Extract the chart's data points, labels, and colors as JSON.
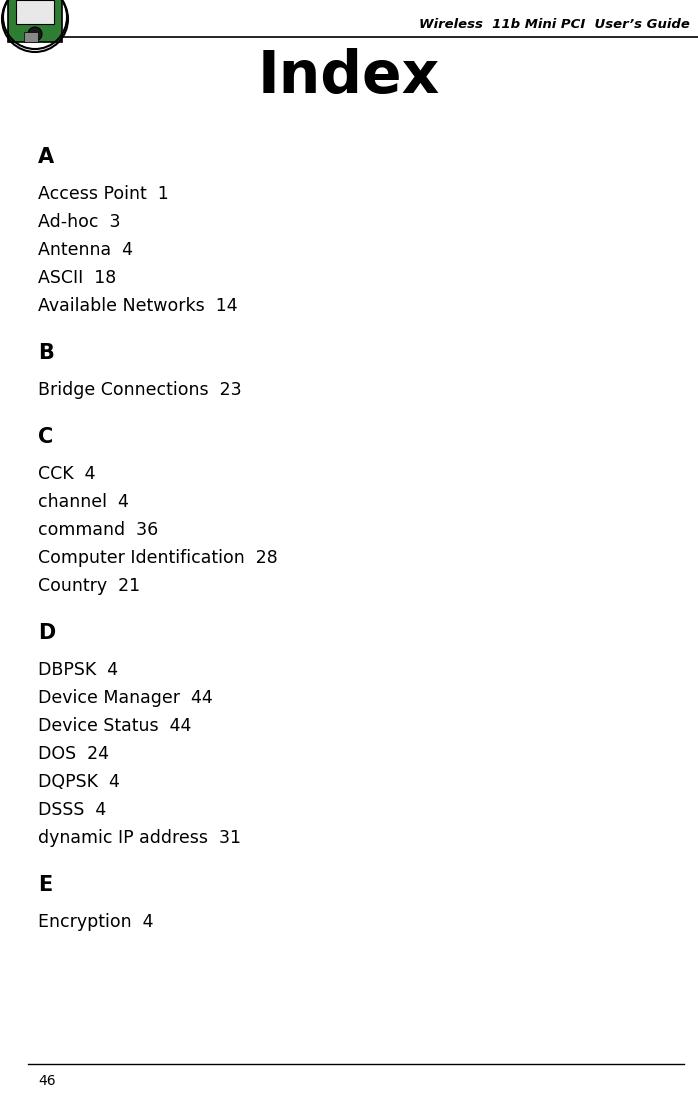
{
  "page_title": "Index",
  "header_text": "Wireless  11b Mini PCI  User’s Guide",
  "page_number": "46",
  "background_color": "#ffffff",
  "text_color": "#000000",
  "sections": [
    {
      "letter": "A",
      "entries": [
        "Access Point  1",
        "Ad-hoc  3",
        "Antenna  4",
        "ASCII  18",
        "Available Networks  14"
      ]
    },
    {
      "letter": "B",
      "entries": [
        "Bridge Connections  23"
      ]
    },
    {
      "letter": "C",
      "entries": [
        "CCK  4",
        "channel  4",
        "command  36",
        "Computer Identification  28",
        "Country  21"
      ]
    },
    {
      "letter": "D",
      "entries": [
        "DBPSK  4",
        "Device Manager  44",
        "Device Status  44",
        "DOS  24",
        "DQPSK  4",
        "DSSS  4",
        "dynamic IP address  31"
      ]
    },
    {
      "letter": "E",
      "entries": [
        "Encryption  4"
      ]
    }
  ]
}
